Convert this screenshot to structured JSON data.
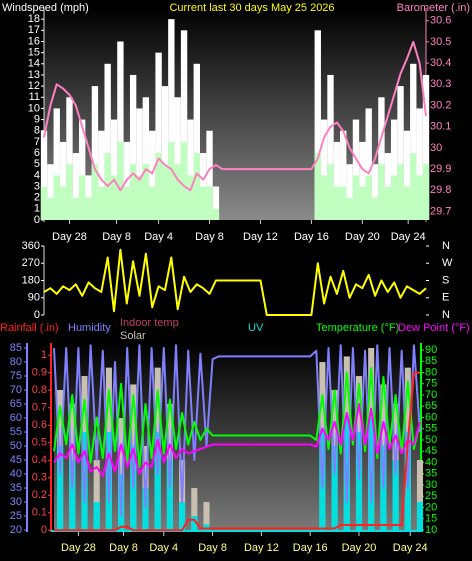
{
  "chart_data": [
    {
      "type": "combo",
      "title": "Current last 30 days May 25 2026",
      "ylabel": "Windspeed (mph)",
      "y2label": "Barometer (.in)",
      "x": [
        0,
        0.5,
        1,
        1.5,
        2,
        2.5,
        3,
        3.5,
        4,
        4.5,
        5,
        5.5,
        6,
        6.5,
        7,
        7.5,
        8,
        8.5,
        9,
        9.5,
        10,
        10.5,
        11,
        11.5,
        12,
        12.5,
        13,
        13.5,
        14,
        14.5,
        15,
        15.5,
        16,
        16.5,
        17,
        17.5,
        18,
        18.5,
        19,
        19.5,
        20,
        20.5,
        21,
        21.5,
        22,
        22.5,
        23,
        23.5,
        24,
        24.5,
        25,
        25.5,
        26,
        26.5,
        27,
        27.5,
        28,
        28.5,
        29,
        29.5,
        30
      ],
      "xlim": [
        0,
        30
      ],
      "xticks": [
        {
          "value": 2,
          "label": "Day 28"
        },
        {
          "value": 5.7,
          "label": "Day 8"
        },
        {
          "value": 9,
          "label": "Day 4"
        },
        {
          "value": 13,
          "label": "Day 8"
        },
        {
          "value": 17,
          "label": "Day 12"
        },
        {
          "value": 21,
          "label": "Day 16"
        },
        {
          "value": 25,
          "label": "Day 20"
        },
        {
          "value": 28.6,
          "label": "Day 24"
        }
      ],
      "ylim": [
        0,
        19
      ],
      "yticks": [
        0,
        1,
        2,
        3,
        4,
        5,
        6,
        7,
        8,
        9,
        10,
        11,
        12,
        13,
        14,
        15,
        16,
        17,
        18
      ],
      "y2lim": [
        29.66,
        30.66
      ],
      "y2ticks": [
        29.7,
        29.8,
        29.9,
        30,
        30.1,
        30.2,
        30.3,
        30.4,
        30.5,
        30.6
      ],
      "series": [
        {
          "color": "#ffffff",
          "kind": "bar",
          "axis": "y",
          "values": [
            8,
            5,
            10,
            7,
            11,
            6,
            9,
            4,
            12,
            8,
            14,
            9,
            16,
            7,
            13,
            10,
            11,
            8,
            15,
            12,
            18,
            11,
            17,
            9,
            14,
            6,
            8,
            3,
            0,
            0,
            0,
            0,
            0,
            0,
            0,
            0,
            0,
            0,
            0,
            0,
            0,
            0,
            0,
            17,
            9,
            13,
            7,
            8,
            5,
            9,
            7,
            10,
            5,
            11,
            6,
            9,
            12,
            8,
            14,
            10,
            13
          ]
        },
        {
          "color": "#c0ffc0",
          "kind": "bar",
          "axis": "y",
          "values": [
            3,
            2,
            4,
            3,
            5,
            2,
            4,
            2,
            5,
            3,
            6,
            4,
            7,
            3,
            5,
            4,
            5,
            3,
            6,
            5,
            7,
            5,
            7,
            4,
            6,
            3,
            3,
            1,
            0,
            0,
            0,
            0,
            0,
            0,
            0,
            0,
            0,
            0,
            0,
            0,
            0,
            0,
            0,
            6,
            4,
            5,
            3,
            3,
            2,
            4,
            3,
            4,
            2,
            5,
            3,
            4,
            5,
            3,
            6,
            4,
            5
          ]
        },
        {
          "color": "#ff80c0",
          "kind": "line",
          "axis": "y2",
          "values": [
            30.05,
            30.2,
            30.3,
            30.28,
            30.25,
            30.2,
            30.1,
            30.0,
            29.9,
            29.85,
            29.82,
            29.85,
            29.8,
            29.85,
            29.88,
            29.85,
            29.9,
            29.88,
            29.95,
            29.92,
            29.9,
            29.85,
            29.82,
            29.8,
            29.88,
            29.85,
            29.9,
            29.92,
            29.9,
            29.9,
            29.9,
            29.9,
            29.9,
            29.9,
            29.9,
            29.9,
            29.9,
            29.9,
            29.9,
            29.9,
            29.9,
            29.9,
            29.9,
            29.95,
            30.05,
            30.1,
            30.12,
            30.08,
            30.0,
            29.95,
            29.9,
            29.88,
            29.95,
            30.05,
            30.15,
            30.25,
            30.35,
            30.42,
            30.5,
            30.4,
            30.15
          ]
        }
      ]
    },
    {
      "type": "line",
      "x": [
        0,
        0.5,
        1,
        1.5,
        2,
        2.5,
        3,
        3.5,
        4,
        4.5,
        5,
        5.5,
        6,
        6.5,
        7,
        7.5,
        8,
        8.5,
        9,
        9.5,
        10,
        10.5,
        11,
        11.5,
        12,
        12.5,
        13,
        13.5,
        14,
        14.5,
        15,
        15.5,
        16,
        16.5,
        17,
        17.5,
        18,
        18.5,
        19,
        19.5,
        20,
        20.5,
        21,
        21.5,
        22,
        22.5,
        23,
        23.5,
        24,
        24.5,
        25,
        25.5,
        26,
        26.5,
        27,
        27.5,
        28,
        28.5,
        29,
        29.5,
        30
      ],
      "xlim": [
        0,
        30
      ],
      "ylim": [
        0,
        360
      ],
      "yticks": [
        0,
        90,
        180,
        270,
        360
      ],
      "y2lim": [
        0,
        360
      ],
      "y2ticks": [
        {
          "value": 0,
          "label": "N"
        },
        {
          "value": 90,
          "label": "E"
        },
        {
          "value": 180,
          "label": "S"
        },
        {
          "value": 270,
          "label": "W"
        },
        {
          "value": 360,
          "label": "N"
        }
      ],
      "series": [
        {
          "color": "#ffff00",
          "kind": "line",
          "axis": "y",
          "values": [
            120,
            140,
            110,
            150,
            130,
            160,
            100,
            170,
            140,
            120,
            300,
            20,
            340,
            60,
            280,
            100,
            320,
            40,
            150,
            130,
            300,
            30,
            200,
            120,
            160,
            140,
            110,
            180,
            180,
            180,
            180,
            180,
            180,
            180,
            180,
            0,
            0,
            0,
            0,
            0,
            0,
            0,
            0,
            270,
            60,
            200,
            110,
            230,
            90,
            160,
            140,
            210,
            100,
            180,
            120,
            170,
            90,
            150,
            130,
            110,
            140
          ]
        }
      ]
    },
    {
      "type": "combo",
      "indoor_label": "Indoor temp",
      "x": [
        0,
        0.5,
        1,
        1.5,
        2,
        2.5,
        3,
        3.5,
        4,
        4.5,
        5,
        5.5,
        6,
        6.5,
        7,
        7.5,
        8,
        8.5,
        9,
        9.5,
        10,
        10.5,
        11,
        11.5,
        12,
        12.5,
        13,
        13.5,
        14,
        14.5,
        15,
        15.5,
        16,
        16.5,
        17,
        17.5,
        18,
        18.5,
        19,
        19.5,
        20,
        20.5,
        21,
        21.5,
        22,
        22.5,
        23,
        23.5,
        24,
        24.5,
        25,
        25.5,
        26,
        26.5,
        27,
        27.5,
        28,
        28.5,
        29,
        29.5,
        30
      ],
      "xlim": [
        0,
        30
      ],
      "xticks": [
        {
          "value": 2,
          "label": "Day 28"
        },
        {
          "value": 5.7,
          "label": "Day 8"
        },
        {
          "value": 9,
          "label": "Day 4"
        },
        {
          "value": 13,
          "label": "Day 8"
        },
        {
          "value": 17,
          "label": "Day 12"
        },
        {
          "value": 21,
          "label": "Day 16"
        },
        {
          "value": 25,
          "label": "Day 20"
        },
        {
          "value": 29.2,
          "label": "Day 24"
        }
      ],
      "ylim": [
        19.3,
        86.8
      ],
      "yticks": [
        20,
        25,
        30,
        35,
        40,
        45,
        50,
        55,
        60,
        65,
        70,
        75,
        80,
        85
      ],
      "y2lim": [
        9.1,
        93.1
      ],
      "y2ticks": [
        10,
        15,
        20,
        25,
        30,
        35,
        40,
        45,
        50,
        55,
        60,
        65,
        70,
        75,
        80,
        85,
        90
      ],
      "y3lim": [
        -0.01,
        1.07
      ],
      "y3ticks": [
        0,
        0.1,
        0.2,
        0.3,
        0.4,
        0.5,
        0.6,
        0.7,
        0.8,
        0.9,
        1
      ],
      "series": [
        {
          "name": "Solar",
          "color": "#c8c0b0",
          "kind": "bar",
          "axis": "y",
          "values": [
            20,
            70,
            20,
            65,
            20,
            75,
            20,
            45,
            20,
            78,
            20,
            60,
            20,
            72,
            20,
            50,
            20,
            78,
            20,
            65,
            20,
            45,
            20,
            35,
            20,
            30,
            20,
            20,
            20,
            20,
            20,
            20,
            20,
            20,
            20,
            20,
            20,
            20,
            20,
            20,
            20,
            20,
            20,
            20,
            80,
            20,
            70,
            20,
            82,
            20,
            75,
            20,
            85,
            20,
            72,
            20,
            65,
            20,
            78,
            20,
            45
          ]
        },
        {
          "name": "UV",
          "color": "#00e0e0",
          "kind": "bar",
          "axis": "y",
          "values": [
            20,
            50,
            20,
            45,
            20,
            55,
            20,
            30,
            20,
            55,
            20,
            40,
            20,
            50,
            20,
            35,
            20,
            55,
            20,
            45,
            20,
            30,
            20,
            25,
            20,
            22,
            20,
            20,
            20,
            20,
            20,
            20,
            20,
            20,
            20,
            20,
            20,
            20,
            20,
            20,
            20,
            20,
            20,
            20,
            55,
            20,
            50,
            20,
            60,
            20,
            55,
            20,
            60,
            20,
            50,
            20,
            45,
            20,
            55,
            20,
            30
          ]
        },
        {
          "name": "Humidity",
          "color": "#8080ff",
          "kind": "line",
          "axis": "y",
          "values": [
            85,
            40,
            85,
            35,
            85,
            30,
            86,
            45,
            84,
            30,
            80,
            25,
            85,
            35,
            86,
            28,
            85,
            40,
            85,
            35,
            86,
            30,
            84,
            45,
            83,
            50,
            81,
            82,
            82,
            82,
            82,
            82,
            82,
            82,
            82,
            82,
            82,
            82,
            82,
            82,
            82,
            82,
            82,
            84,
            35,
            85,
            40,
            86,
            30,
            85,
            38,
            84,
            30,
            86,
            35,
            85,
            40,
            84,
            35,
            86,
            55
          ]
        },
        {
          "name": "Temperature (°F)",
          "color": "#00ff00",
          "kind": "line",
          "axis": "y2",
          "values": [
            45,
            65,
            48,
            70,
            44,
            68,
            40,
            60,
            42,
            72,
            45,
            75,
            40,
            70,
            38,
            66,
            42,
            72,
            44,
            68,
            46,
            62,
            48,
            58,
            50,
            55,
            52,
            52,
            52,
            52,
            52,
            52,
            52,
            52,
            52,
            52,
            52,
            52,
            52,
            52,
            52,
            52,
            52,
            50,
            70,
            46,
            72,
            44,
            80,
            48,
            75,
            45,
            82,
            42,
            78,
            48,
            70,
            44,
            76,
            46,
            58
          ]
        },
        {
          "name": "Dew Point (°F)",
          "color": "#ff00ff",
          "kind": "line",
          "axis": "y2",
          "values": [
            40,
            44,
            42,
            48,
            40,
            45,
            36,
            38,
            34,
            44,
            36,
            48,
            38,
            46,
            35,
            40,
            38,
            50,
            40,
            48,
            42,
            46,
            44,
            45,
            46,
            47,
            48,
            48,
            48,
            48,
            48,
            48,
            48,
            48,
            48,
            48,
            48,
            48,
            48,
            48,
            48,
            48,
            48,
            47,
            55,
            50,
            58,
            48,
            62,
            50,
            66,
            48,
            64,
            44,
            58,
            46,
            52,
            44,
            50,
            48,
            58
          ]
        },
        {
          "name": "Rainfall (.in)",
          "color": "#ff2020",
          "kind": "line",
          "axis": "y3",
          "values": [
            0,
            0,
            0,
            0,
            0,
            0,
            0,
            0,
            0,
            0,
            0,
            0.02,
            0.02,
            0,
            0,
            0,
            0,
            0,
            0,
            0,
            0,
            0,
            0.06,
            0.06,
            0.01,
            0.01,
            0.01,
            0.01,
            0.01,
            0.01,
            0.01,
            0.01,
            0.01,
            0.01,
            0.01,
            0.01,
            0.01,
            0.01,
            0.01,
            0.01,
            0.01,
            0.01,
            0.01,
            0.01,
            0.01,
            0.01,
            0.01,
            0.03,
            0.03,
            0.03,
            0.03,
            0.03,
            0.03,
            0.03,
            0.03,
            0.03,
            0.03,
            0.03,
            0.5,
            0.9,
            0.9
          ]
        }
      ]
    }
  ]
}
